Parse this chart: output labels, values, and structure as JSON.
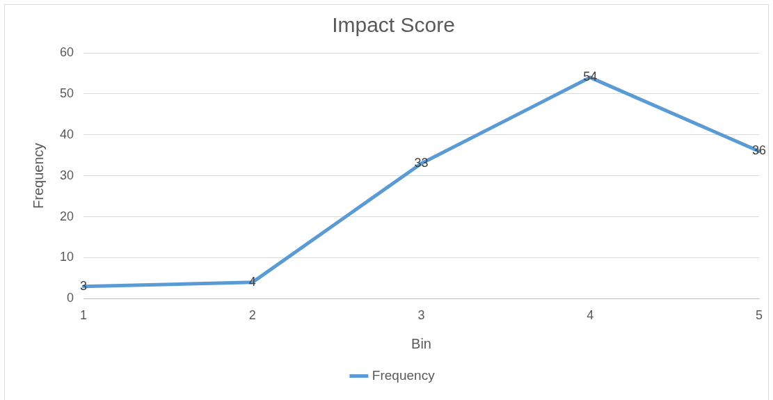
{
  "chart_data": {
    "type": "line",
    "title": "Impact Score",
    "xlabel": "Bin",
    "ylabel": "Frequency",
    "categories": [
      "1",
      "2",
      "3",
      "4",
      "5"
    ],
    "series": [
      {
        "name": "Frequency",
        "color": "#5b9bd5",
        "values": [
          3,
          4,
          33,
          54,
          36
        ]
      }
    ],
    "ylim": [
      0,
      60
    ],
    "yticks": [
      0,
      10,
      20,
      30,
      40,
      50,
      60
    ],
    "grid": "y",
    "legend": "bottom",
    "data_labels": true,
    "marker": "none",
    "line_style": "solid"
  }
}
